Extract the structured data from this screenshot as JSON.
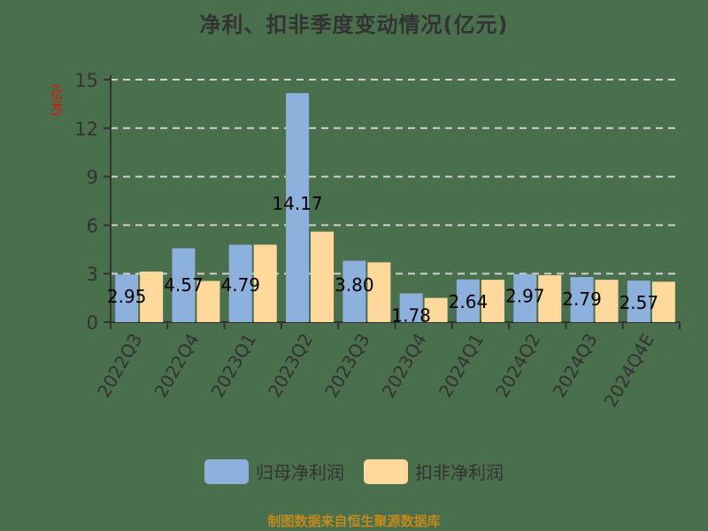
{
  "title": "净利、扣非季度变动情况(亿元)",
  "y_unit": "(亿元)",
  "legend": [
    {
      "label": "归母净利润",
      "color": "#8eb0dc"
    },
    {
      "label": "扣非净利润",
      "color": "#fed99b"
    }
  ],
  "source": "制图数据来自恒生聚源数据库",
  "chart_data": {
    "type": "bar",
    "title": "净利、扣非季度变动情况(亿元)",
    "xlabel": "",
    "ylabel": "(亿元)",
    "ylim": [
      0,
      15
    ],
    "yticks": [
      0,
      3,
      6,
      9,
      12,
      15
    ],
    "grid": true,
    "legend_position": "bottom",
    "categories": [
      "2022Q3",
      "2022Q4",
      "2023Q1",
      "2023Q2",
      "2023Q3",
      "2023Q4",
      "2024Q1",
      "2024Q2",
      "2024Q3",
      "2024Q4E"
    ],
    "series": [
      {
        "name": "归母净利润",
        "color": "#8eb0dc",
        "values": [
          2.95,
          4.57,
          4.79,
          14.17,
          3.8,
          1.78,
          2.64,
          2.97,
          2.79,
          2.57
        ],
        "labels": [
          "2.95",
          "4.57",
          "4.79",
          "14.17",
          "3.80",
          "1.78",
          "2.64",
          "2.97",
          "2.79",
          "2.57"
        ]
      },
      {
        "name": "扣非净利润",
        "color": "#fed99b",
        "values": [
          3.13,
          2.55,
          4.79,
          5.6,
          3.7,
          1.5,
          2.62,
          2.9,
          2.62,
          2.5
        ]
      }
    ]
  }
}
